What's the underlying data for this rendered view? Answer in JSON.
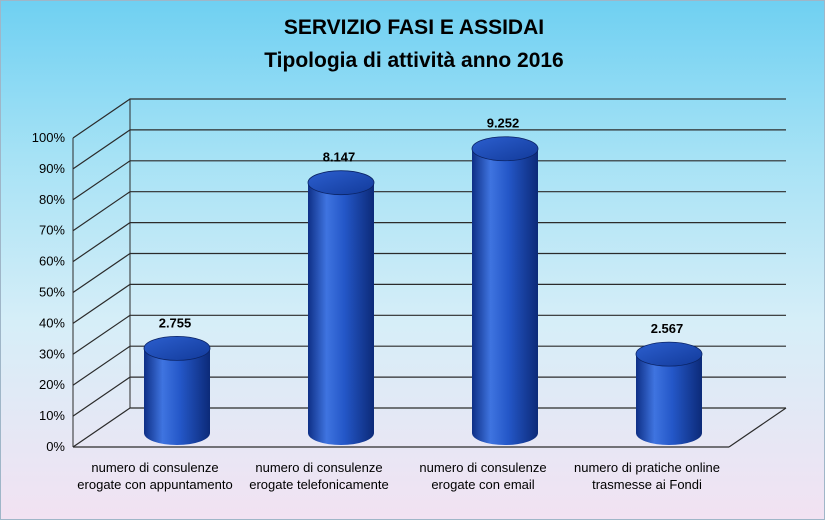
{
  "chart_data": {
    "type": "bar",
    "title": [
      "SERVIZIO FASI E ASSIDAI",
      "Tipologia di attività anno 2016"
    ],
    "categories": [
      "numero di consulenze erogate con appuntamento",
      "numero di consulenze erogate telefonicamente",
      "numero di consulenze erogate con email",
      "numero di pratiche online trasmesse ai Fondi"
    ],
    "values": [
      2755,
      8147,
      9252,
      2567
    ],
    "data_labels": [
      "2.755",
      "8.147",
      "9.252",
      "2.567"
    ],
    "y_ticks": [
      "0%",
      "10%",
      "20%",
      "30%",
      "40%",
      "50%",
      "60%",
      "70%",
      "80%",
      "90%",
      "100%"
    ],
    "ylim": [
      0,
      100
    ],
    "y_scale": "percent",
    "xlabel": "",
    "ylabel": "",
    "grid": true,
    "style": "3d-cylinder",
    "colors": {
      "bar": "#1f4fbf",
      "bar_dark": "#0d2b7a",
      "bar_light": "#5a86e8",
      "grid": "#2b2b2b"
    }
  }
}
